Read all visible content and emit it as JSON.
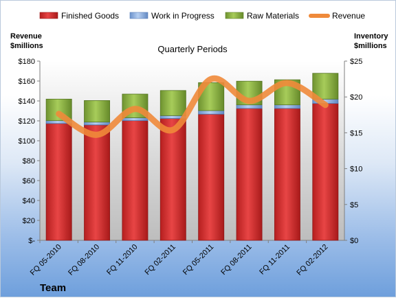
{
  "chart_data": {
    "type": "bar",
    "stacked": true,
    "title": "Quarterly Periods",
    "footer": "Team",
    "categories": [
      "FQ 05-2010",
      "FQ 08-2010",
      "FQ 11-2010",
      "FQ 02-2011",
      "FQ 05-2011",
      "FQ 08-2011",
      "FQ 11-2011",
      "FQ 02-2012"
    ],
    "left_axis": {
      "label": [
        "Revenue",
        "$millions"
      ],
      "ylim": [
        0,
        180
      ],
      "ticks": [
        0,
        20,
        40,
        60,
        80,
        100,
        120,
        140,
        160,
        180
      ],
      "tick_labels": [
        "$-",
        "$20",
        "$40",
        "$60",
        "$80",
        "$100",
        "$120",
        "$140",
        "$160",
        "$180"
      ]
    },
    "right_axis": {
      "label": [
        "Inventory",
        "$millions"
      ],
      "ylim": [
        0,
        25
      ],
      "ticks": [
        0,
        5,
        10,
        15,
        20,
        25
      ],
      "tick_labels": [
        "$0",
        "$5",
        "$10",
        "$15",
        "$20",
        "$25"
      ]
    },
    "series": [
      {
        "name": "Finished Goods",
        "axis": "right",
        "type": "bar",
        "color": "#d93030",
        "values": [
          16.3,
          16.1,
          16.7,
          17.0,
          17.6,
          18.4,
          18.4,
          19.1
        ]
      },
      {
        "name": "Work in Progress",
        "axis": "right",
        "type": "bar",
        "color": "#8fb4e8",
        "values": [
          0.4,
          0.4,
          0.4,
          0.4,
          0.5,
          0.5,
          0.5,
          0.6
        ]
      },
      {
        "name": "Raw Materials",
        "axis": "right",
        "type": "bar",
        "color": "#8db543",
        "values": [
          3.0,
          3.0,
          3.3,
          3.5,
          3.9,
          3.3,
          3.5,
          3.6
        ]
      },
      {
        "name": "Revenue",
        "axis": "left",
        "type": "line",
        "color": "#ef8a3a",
        "values": [
          127,
          106,
          132,
          111,
          162,
          140,
          158,
          136
        ]
      }
    ],
    "legend": "top",
    "grid": false
  }
}
